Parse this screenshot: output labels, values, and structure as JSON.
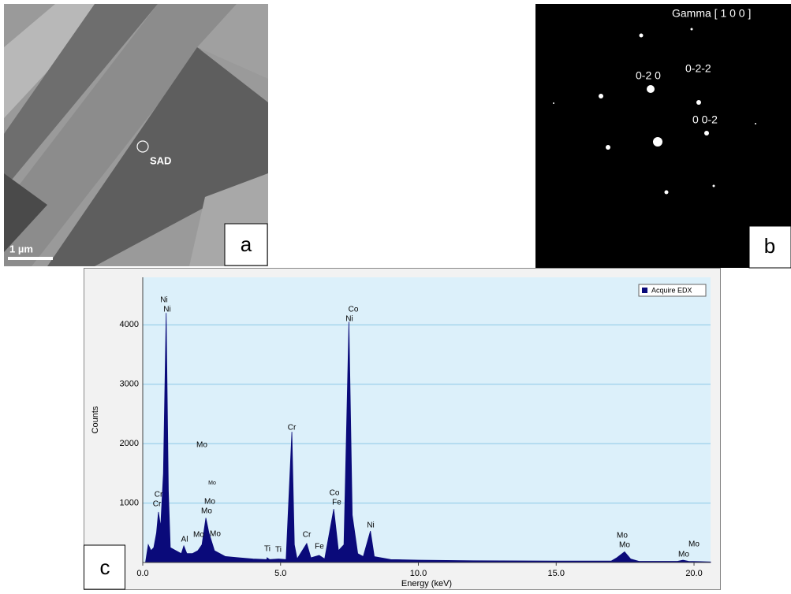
{
  "panel_a": {
    "label": "a",
    "marker": "SAD",
    "scale_bar": "1 µm"
  },
  "panel_b": {
    "label": "b",
    "title": "Gamma [ 1 0 0 ]",
    "spots": [
      "0-2 0",
      "0-2-2",
      "0 0-2"
    ]
  },
  "chart_data": {
    "type": "area",
    "panel_label": "c",
    "x_label": "Energy (keV)",
    "y_label": "Counts",
    "xlim": [
      0,
      20.6
    ],
    "ylim": [
      0,
      4800
    ],
    "xticks": [
      {
        "value": 0,
        "label": "0.0"
      },
      {
        "value": 5,
        "label": "5.0"
      },
      {
        "value": 10,
        "label": "10.0"
      },
      {
        "value": 15,
        "label": "15.0"
      },
      {
        "value": 20,
        "label": "20.0"
      }
    ],
    "yticks": [
      1000,
      2000,
      3000,
      4000
    ],
    "grid": true,
    "legend": "top-right",
    "x": [
      0.1,
      0.2,
      0.3,
      0.4,
      0.5,
      0.57,
      0.65,
      0.75,
      0.85,
      0.93,
      1.0,
      1.2,
      1.4,
      1.49,
      1.6,
      1.8,
      2.0,
      2.15,
      2.29,
      2.4,
      2.6,
      3.0,
      3.5,
      4.0,
      4.5,
      4.51,
      4.6,
      4.93,
      5.2,
      5.41,
      5.5,
      5.6,
      5.95,
      6.1,
      6.4,
      6.6,
      6.93,
      7.1,
      7.3,
      7.48,
      7.6,
      7.8,
      8.0,
      8.26,
      8.4,
      9,
      10,
      12,
      15,
      17,
      17.2,
      17.48,
      17.7,
      18,
      19.4,
      19.6,
      19.8,
      20.6
    ],
    "series": [
      {
        "name": "Acquire EDX",
        "color": "#0a0a7a",
        "values": [
          0,
          300,
          200,
          250,
          500,
          850,
          600,
          1500,
          4200,
          1200,
          250,
          200,
          150,
          280,
          150,
          150,
          200,
          300,
          750,
          500,
          200,
          100,
          80,
          60,
          50,
          80,
          50,
          60,
          50,
          2200,
          300,
          60,
          320,
          80,
          120,
          60,
          900,
          200,
          300,
          4050,
          800,
          150,
          100,
          530,
          100,
          50,
          40,
          30,
          25,
          25,
          80,
          180,
          60,
          20,
          20,
          40,
          20,
          10
        ]
      }
    ],
    "annotations": [
      "Ni",
      "Ni",
      "Mo",
      "Mo",
      "Cr",
      "Cr",
      "Mo",
      "Mo",
      "Al",
      "Mo",
      "Mo",
      "Ti",
      "Ti",
      "Cr",
      "Cr",
      "Fe",
      "Co",
      "Fe",
      "Co",
      "Ni",
      "Ni",
      "Mo",
      "Mo",
      "Mo",
      "Mo"
    ]
  }
}
